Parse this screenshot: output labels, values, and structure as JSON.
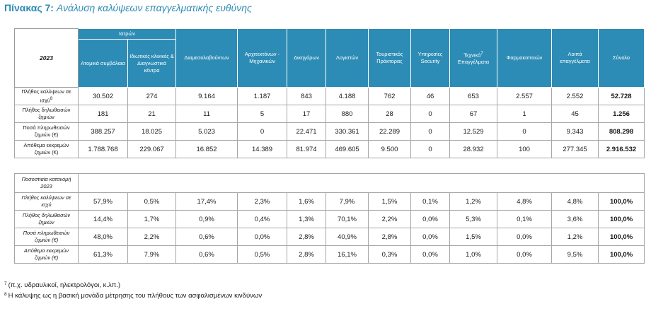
{
  "title": {
    "prefix": "Πίνακας 7:",
    "text": "Ανάλυση καλύψεων επαγγελματικής ευθύνης"
  },
  "header": {
    "year": "2023",
    "group_label": "Ιατρών",
    "columns": [
      "Ατομικά συμβόλαια",
      "Ιδιωτικές κλινικές & Διαγνωστικά κέντρα",
      "Διαμεσολαβούντων",
      "Αρχιτεκτόνων - Μηχανικών",
      "Δικηγόρων",
      "Λογιστών",
      "Τουριστικός Πράκτορας",
      "Υπηρεσίες Security",
      "Τεχνικά",
      "Φαρμακοποιών",
      "Λοιπά επαγγέλματα",
      "Σύνολο"
    ],
    "technical_note_mark": "7",
    "technical_suffix": "Επαγγέλματα"
  },
  "rows": [
    {
      "label": "Πλήθος καλύψεων σε ισχύ",
      "note_mark": "8",
      "values": [
        "30.502",
        "274",
        "9.164",
        "1.187",
        "843",
        "4.188",
        "762",
        "46",
        "653",
        "2.557",
        "2.552",
        "52.728"
      ]
    },
    {
      "label": "Πλήθος δηλωθεισών ζημιών",
      "note_mark": "",
      "values": [
        "181",
        "21",
        "11",
        "5",
        "17",
        "880",
        "28",
        "0",
        "67",
        "1",
        "45",
        "1.256"
      ]
    },
    {
      "label": "Ποσά πληρωθεισών ζημιών (€)",
      "note_mark": "",
      "values": [
        "388.257",
        "18.025",
        "5.023",
        "0",
        "22.471",
        "330.361",
        "22.289",
        "0",
        "12.529",
        "0",
        "9.343",
        "808.298"
      ]
    },
    {
      "label": "Απόθεμα εκκρεμών ζημιών (€)",
      "note_mark": "",
      "values": [
        "1.788.768",
        "229.067",
        "16.852",
        "14.389",
        "81.974",
        "469.605",
        "9.500",
        "0",
        "28.932",
        "100",
        "277.345",
        "2.916.532"
      ]
    }
  ],
  "pct_section": {
    "label": "Ποσοστιαία κατανομή 2023",
    "rows": [
      {
        "label": "Πλήθος καλύψεων σε ισχύ",
        "values": [
          "57,9%",
          "0,5%",
          "17,4%",
          "2,3%",
          "1,6%",
          "7,9%",
          "1,5%",
          "0,1%",
          "1,2%",
          "4,8%",
          "4,8%",
          "100,0%"
        ]
      },
      {
        "label": "Πλήθος δηλωθεισών ζημιών",
        "values": [
          "14,4%",
          "1,7%",
          "0,9%",
          "0,4%",
          "1,3%",
          "70,1%",
          "2,2%",
          "0,0%",
          "5,3%",
          "0,1%",
          "3,6%",
          "100,0%"
        ]
      },
      {
        "label": "Ποσά πληρωθεισών ζημιών (€)",
        "values": [
          "48,0%",
          "2,2%",
          "0,6%",
          "0,0%",
          "2,8%",
          "40,9%",
          "2,8%",
          "0,0%",
          "1,5%",
          "0,0%",
          "1,2%",
          "100,0%"
        ]
      },
      {
        "label": "Απόθεμα εκκρεμών ζημιών (€)",
        "values": [
          "61,3%",
          "7,9%",
          "0,6%",
          "0,5%",
          "2,8%",
          "16,1%",
          "0,3%",
          "0,0%",
          "1,0%",
          "0,0%",
          "9,5%",
          "100,0%"
        ]
      }
    ]
  },
  "footnotes": [
    {
      "mark": "7",
      "text": "(π.χ. υδραυλικοί, ηλεκτρολόγοι, κ.λπ.)"
    },
    {
      "mark": "8",
      "text": "Η κάλυψης ως η βασική μονάδα μέτρησης του πλήθους των ασφαλισμένων κινδύνων"
    }
  ]
}
